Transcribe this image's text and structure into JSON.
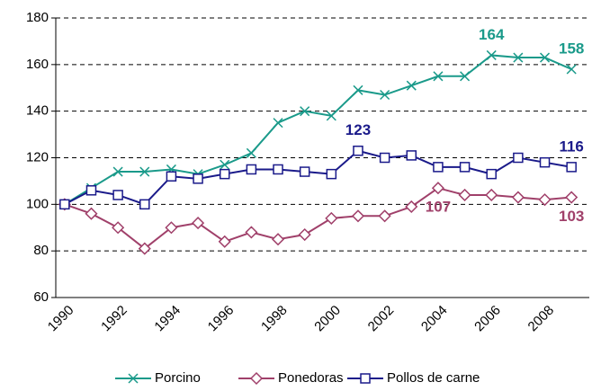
{
  "chart_data": {
    "type": "line",
    "categories": [
      "1990",
      null,
      "1992",
      null,
      "1994",
      null,
      "1996",
      null,
      "1998",
      null,
      "2000",
      null,
      "2002",
      null,
      "2004",
      null,
      "2006",
      null,
      "2008",
      null
    ],
    "series": [
      {
        "name": "Porcino",
        "color": "#1a9a8a",
        "marker": "x",
        "values": [
          100,
          107,
          114,
          114,
          115,
          113,
          117,
          122,
          135,
          140,
          138,
          149,
          147,
          151,
          155,
          155,
          164,
          163,
          163,
          158
        ],
        "labeled": [
          16,
          19
        ]
      },
      {
        "name": "Ponedoras",
        "color": "#a0406a",
        "marker": "diamond",
        "values": [
          100,
          96,
          90,
          81,
          90,
          92,
          84,
          88,
          85,
          87,
          94,
          95,
          95,
          99,
          107,
          104,
          104,
          103,
          102,
          103
        ],
        "labeled": [
          14,
          19
        ]
      },
      {
        "name": "Pollos de carne",
        "color": "#1a1a8a",
        "marker": "square",
        "values": [
          100,
          106,
          104,
          100,
          112,
          111,
          113,
          115,
          115,
          114,
          113,
          123,
          120,
          121,
          116,
          116,
          113,
          120,
          118,
          116
        ],
        "labeled": [
          11,
          19
        ]
      }
    ],
    "ylim": [
      60,
      180
    ],
    "yticks": [
      60,
      80,
      100,
      120,
      140,
      160,
      180
    ],
    "grid": true,
    "legend": "bottom"
  }
}
